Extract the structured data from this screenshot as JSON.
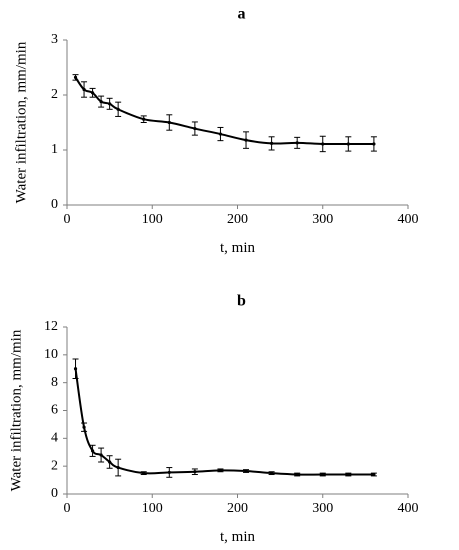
{
  "chart_data": [
    {
      "type": "line",
      "title": "a",
      "xlabel": "t, min",
      "ylabel": "Water infiltration, mm/min",
      "xlim": [
        0,
        400
      ],
      "ylim": [
        0,
        3
      ],
      "xticks": [
        0,
        100,
        200,
        300,
        400
      ],
      "yticks": [
        0,
        1,
        2,
        3
      ],
      "grid": false,
      "series": [
        {
          "x": [
            10,
            20,
            30,
            40,
            50,
            60,
            90,
            120,
            150,
            180,
            210,
            240,
            270,
            300,
            330,
            360
          ],
          "y": [
            2.32,
            2.1,
            2.04,
            1.88,
            1.84,
            1.74,
            1.56,
            1.5,
            1.39,
            1.29,
            1.18,
            1.12,
            1.13,
            1.11,
            1.11,
            1.11
          ],
          "err": [
            0.05,
            0.14,
            0.08,
            0.1,
            0.1,
            0.13,
            0.06,
            0.14,
            0.12,
            0.12,
            0.15,
            0.12,
            0.1,
            0.14,
            0.13,
            0.13
          ]
        }
      ]
    },
    {
      "type": "line",
      "title": "b",
      "xlabel": "t, min",
      "ylabel": "Water infiltration, mm/min",
      "xlim": [
        0,
        400
      ],
      "ylim": [
        0,
        12
      ],
      "xticks": [
        0,
        100,
        200,
        300,
        400
      ],
      "yticks": [
        0,
        2,
        4,
        6,
        8,
        10,
        12
      ],
      "grid": false,
      "series": [
        {
          "x": [
            10,
            20,
            30,
            40,
            50,
            60,
            90,
            120,
            150,
            180,
            210,
            240,
            270,
            300,
            330,
            360
          ],
          "y": [
            9.0,
            4.8,
            3.1,
            2.8,
            2.3,
            1.9,
            1.5,
            1.55,
            1.6,
            1.7,
            1.65,
            1.5,
            1.4,
            1.4,
            1.4,
            1.4
          ],
          "err": [
            0.7,
            0.3,
            0.4,
            0.5,
            0.45,
            0.6,
            0.1,
            0.35,
            0.2,
            0.1,
            0.1,
            0.1,
            0.1,
            0.1,
            0.1,
            0.1
          ]
        }
      ]
    }
  ]
}
